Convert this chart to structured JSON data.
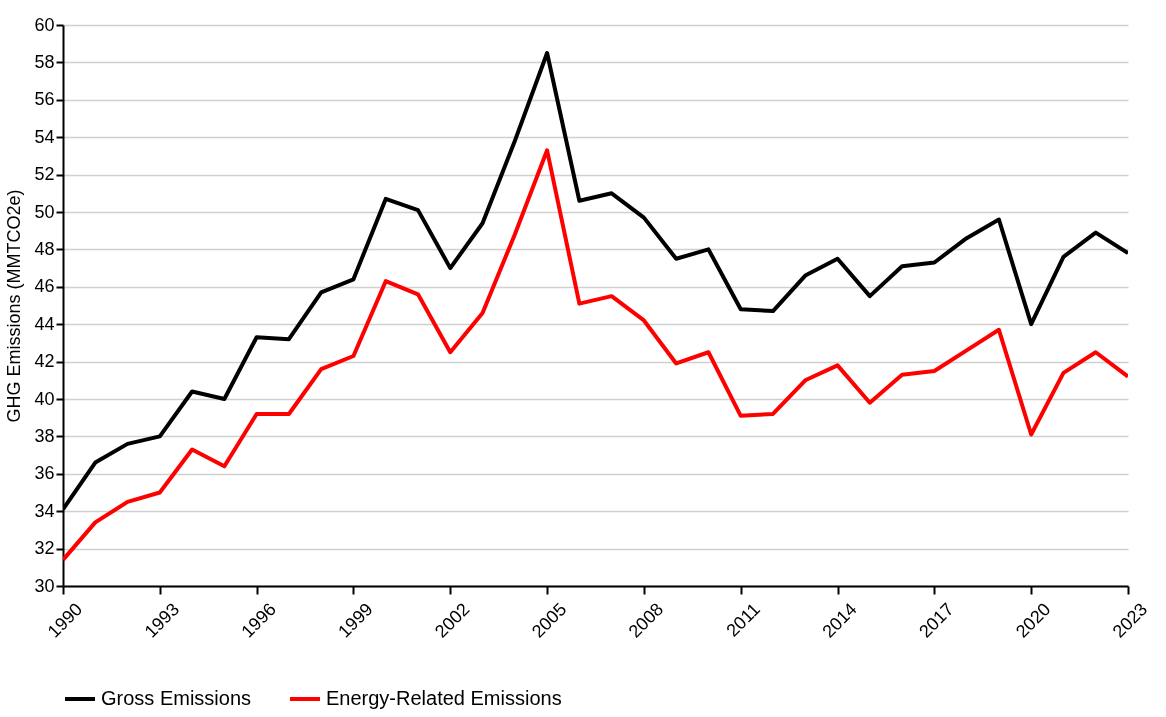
{
  "chart_data": {
    "type": "line",
    "ylabel": "GHG Emissions (MMTCO2e)",
    "x": [
      1990,
      1991,
      1992,
      1993,
      1994,
      1995,
      1996,
      1997,
      1998,
      1999,
      2000,
      2001,
      2002,
      2003,
      2004,
      2005,
      2006,
      2007,
      2008,
      2009,
      2010,
      2011,
      2012,
      2013,
      2014,
      2015,
      2016,
      2017,
      2018,
      2019,
      2020,
      2021,
      2022,
      2023
    ],
    "series": [
      {
        "name": "Gross Emissions",
        "color": "#000000",
        "values": [
          34.1,
          36.6,
          37.6,
          38.0,
          40.4,
          40.0,
          43.3,
          43.2,
          45.7,
          46.4,
          50.7,
          50.1,
          47.0,
          49.4,
          53.8,
          58.5,
          50.6,
          51.0,
          49.7,
          47.5,
          48.0,
          44.8,
          44.7,
          46.6,
          47.5,
          45.5,
          47.1,
          47.3,
          48.6,
          49.6,
          44.0,
          47.6,
          48.9,
          47.8
        ]
      },
      {
        "name": "Energy-Related Emissions",
        "color": "#ff0000",
        "values": [
          31.4,
          33.4,
          34.5,
          35.0,
          37.3,
          36.4,
          39.2,
          39.2,
          41.6,
          42.3,
          46.3,
          45.6,
          42.5,
          44.6,
          48.8,
          53.3,
          45.1,
          45.5,
          44.2,
          41.9,
          42.5,
          39.1,
          39.2,
          41.0,
          41.8,
          39.8,
          41.3,
          41.5,
          42.6,
          43.7,
          38.1,
          41.4,
          42.5,
          41.2
        ]
      }
    ],
    "xlim": [
      1990,
      2023
    ],
    "xticks": [
      1990,
      1993,
      1996,
      1999,
      2002,
      2005,
      2008,
      2011,
      2014,
      2017,
      2020,
      2023
    ],
    "ylim": [
      30,
      60
    ],
    "yticks": [
      30,
      32,
      34,
      36,
      38,
      40,
      42,
      44,
      46,
      48,
      50,
      52,
      54,
      56,
      58,
      60
    ],
    "grid": "y",
    "legend": "bottom",
    "marker": "none",
    "line_style": "solid"
  }
}
